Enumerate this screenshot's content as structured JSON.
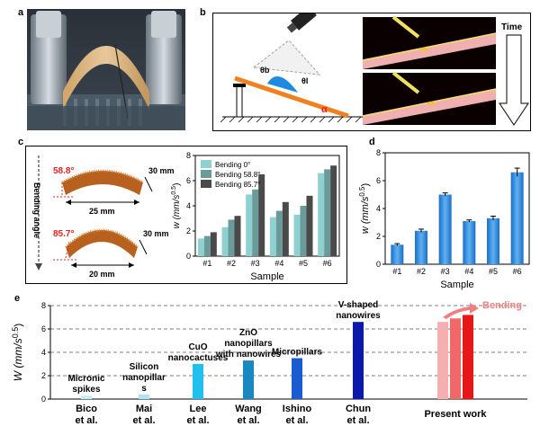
{
  "panels": {
    "a": {
      "label": "a"
    },
    "b": {
      "label": "b",
      "theta_b": "θb",
      "theta_l": "θl",
      "alpha": "α",
      "time_label": "Time"
    },
    "c": {
      "label": "c",
      "bending_axis": "Bending angle",
      "sample1": {
        "angle": "58.8°",
        "height": "30 mm",
        "width": "25 mm"
      },
      "sample2": {
        "angle": "85.7°",
        "height": "30 mm",
        "width": "20 mm"
      }
    },
    "d": {
      "label": "d"
    },
    "e": {
      "label": "e"
    }
  },
  "colors": {
    "accent_red": "#e8201f",
    "bending_arrow": "#f08080",
    "ink": "#000000"
  },
  "chart_data": [
    {
      "id": "c",
      "type": "bar",
      "categories": [
        "#1",
        "#2",
        "#3",
        "#4",
        "#5",
        "#6"
      ],
      "series": [
        {
          "name": "Bending 0°",
          "color": "#8fd0d0",
          "values": [
            1.4,
            2.3,
            4.9,
            3.1,
            3.3,
            6.6
          ]
        },
        {
          "name": "Bending 58.8°",
          "color": "#6a9a9a",
          "values": [
            1.6,
            2.9,
            5.3,
            3.6,
            4.0,
            6.9
          ]
        },
        {
          "name": "Bending 85.7°",
          "color": "#4a4a4a",
          "values": [
            1.9,
            3.2,
            6.5,
            4.3,
            4.8,
            7.2
          ]
        }
      ],
      "xlabel": "Sample",
      "ylabel": "w (mm/s",
      "ylabel_sup": "0.5",
      "ylabel_end": ")",
      "ylim": [
        0,
        8
      ],
      "yticks": [
        "0",
        "2",
        "4",
        "6",
        "8"
      ]
    },
    {
      "id": "d",
      "type": "bar",
      "categories": [
        "#1",
        "#2",
        "#3",
        "#4",
        "#5",
        "#6"
      ],
      "values": [
        1.4,
        2.4,
        5.0,
        3.1,
        3.3,
        6.6
      ],
      "errors": [
        0.08,
        0.12,
        0.12,
        0.08,
        0.15,
        0.3
      ],
      "xlabel": "Sample",
      "ylabel": "w (mm/s",
      "ylabel_sup": "0.5",
      "ylabel_end": ")",
      "ylim": [
        0,
        8
      ],
      "yticks": [
        "0",
        "2",
        "4",
        "6",
        "8"
      ]
    },
    {
      "id": "e",
      "type": "bar",
      "ylabel": "W (mm/s",
      "ylabel_sup": "0.5",
      "ylabel_end": ")",
      "ylim": [
        0,
        8
      ],
      "yticks": [
        "0",
        "2",
        "4",
        "6",
        "8"
      ],
      "bars": [
        {
          "author": [
            "Bico",
            "et al."
          ],
          "label": [
            "Micronic",
            "spikes"
          ],
          "value": 0.3,
          "color": "#c6ecf8"
        },
        {
          "author": [
            "Mai",
            "et al."
          ],
          "label": [
            "Silicon",
            "nanopillar",
            "s"
          ],
          "value": 0.4,
          "color": "#b0e4f4"
        },
        {
          "author": [
            "Lee",
            "et al."
          ],
          "label": [
            "CuO",
            "nanocactuses"
          ],
          "value": 3.0,
          "color": "#21c0ee"
        },
        {
          "author": [
            "Wang",
            "et al."
          ],
          "label": [
            "ZnO",
            "nanopillars",
            "with nanowires"
          ],
          "value": 3.3,
          "color": "#1a88c0"
        },
        {
          "author": [
            "Ishino",
            "et al."
          ],
          "label": [
            "Micropillars"
          ],
          "value": 3.5,
          "color": "#1a5bd0"
        },
        {
          "author": [
            "Chun",
            "et al."
          ],
          "label": [
            "V-shaped",
            "nanowires"
          ],
          "value": 6.6,
          "color": "#0a1aa8"
        }
      ],
      "present_work": {
        "label": "Present work",
        "bending_label": "Bending",
        "values": [
          6.6,
          6.9,
          7.2
        ],
        "colors": [
          "#f4b0b0",
          "#f06868",
          "#e81818"
        ]
      }
    }
  ]
}
